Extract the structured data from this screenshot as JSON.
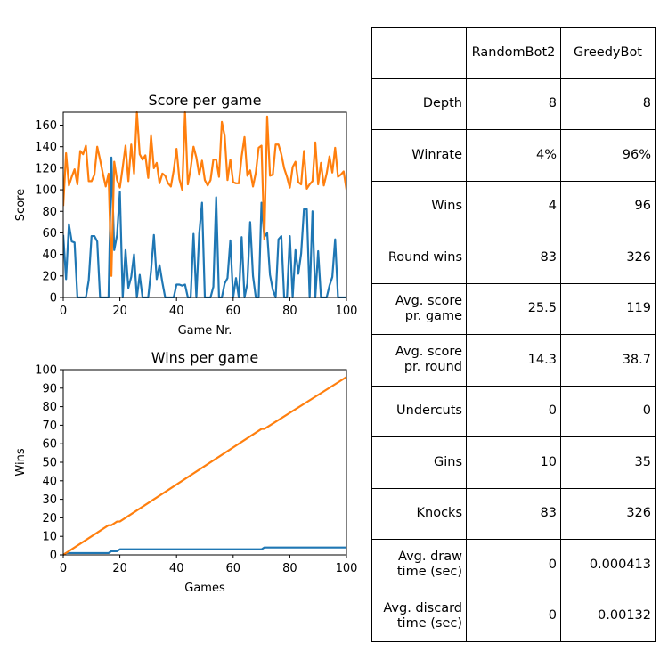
{
  "chart_data": [
    {
      "type": "line",
      "title": "Score per game",
      "xlabel": "Game Nr.",
      "ylabel": "Score",
      "xlim": [
        0,
        100
      ],
      "ylim": [
        0,
        172
      ],
      "xticks": [
        0,
        20,
        40,
        60,
        80,
        100
      ],
      "yticks": [
        0,
        20,
        40,
        60,
        80,
        100,
        120,
        140,
        160
      ],
      "grid": false,
      "colors": [
        "#1f77b4",
        "#ff7f0e"
      ],
      "x_start": 0,
      "series": [
        {
          "values": [
            58,
            17,
            68,
            52,
            51,
            0,
            0,
            0,
            0,
            16,
            57,
            57,
            52,
            0,
            0,
            0,
            0,
            130,
            44,
            58,
            98,
            0,
            44,
            9,
            19,
            40,
            0,
            21,
            0,
            0,
            0,
            25,
            58,
            17,
            30,
            14,
            0,
            0,
            0,
            0,
            12,
            12,
            11,
            12,
            0,
            0,
            59,
            0,
            59,
            88,
            0,
            0,
            0,
            10,
            93,
            0,
            0,
            13,
            18,
            53,
            0,
            18,
            0,
            56,
            0,
            13,
            70,
            20,
            0,
            0,
            88,
            56,
            60,
            21,
            7,
            0,
            54,
            57,
            0,
            0,
            57,
            0,
            44,
            22,
            41,
            82,
            82,
            0,
            80,
            0,
            43,
            0,
            0,
            0,
            11,
            19,
            54,
            0,
            0,
            0,
            0
          ]
        },
        {
          "values": [
            85,
            134,
            104,
            112,
            119,
            105,
            136,
            133,
            141,
            108,
            108,
            114,
            140,
            128,
            115,
            103,
            115,
            20,
            126,
            109,
            102,
            121,
            141,
            108,
            142,
            115,
            172,
            133,
            128,
            132,
            111,
            150,
            120,
            125,
            106,
            115,
            113,
            106,
            103,
            118,
            138,
            110,
            100,
            172,
            105,
            120,
            140,
            130,
            114,
            127,
            109,
            104,
            109,
            128,
            128,
            112,
            163,
            150,
            109,
            128,
            107,
            106,
            106,
            131,
            149,
            113,
            118,
            103,
            116,
            139,
            141,
            54,
            168,
            113,
            114,
            142,
            142,
            133,
            120,
            112,
            102,
            121,
            126,
            107,
            105,
            136,
            101,
            105,
            108,
            144,
            105,
            125,
            104,
            115,
            131,
            116,
            139,
            112,
            114,
            117,
            100
          ]
        }
      ]
    },
    {
      "type": "line",
      "title": "Wins per game",
      "xlabel": "Games",
      "ylabel": "Wins",
      "xlim": [
        0,
        100
      ],
      "ylim": [
        0,
        100
      ],
      "xticks": [
        0,
        20,
        40,
        60,
        80,
        100
      ],
      "yticks": [
        0,
        10,
        20,
        30,
        40,
        50,
        60,
        70,
        80,
        90,
        100
      ],
      "grid": false,
      "colors": [
        "#1f77b4",
        "#ff7f0e"
      ],
      "series": [
        {
          "points": [
            [
              0,
              0
            ],
            [
              1,
              1
            ],
            [
              16,
              1
            ],
            [
              17,
              2
            ],
            [
              19,
              2
            ],
            [
              20,
              3
            ],
            [
              70,
              3
            ],
            [
              71,
              4
            ],
            [
              100,
              4
            ]
          ]
        },
        {
          "points": [
            [
              0,
              0
            ],
            [
              16,
              16
            ],
            [
              17,
              16
            ],
            [
              18,
              17
            ],
            [
              19,
              18
            ],
            [
              20,
              18
            ],
            [
              70,
              68
            ],
            [
              71,
              68
            ],
            [
              100,
              96
            ]
          ]
        }
      ]
    },
    {
      "type": "table",
      "columns": [
        "",
        "RandomBot2",
        "GreedyBot"
      ],
      "rows": [
        [
          "Depth",
          "8",
          "8"
        ],
        [
          "Winrate",
          "4%",
          "96%"
        ],
        [
          "Wins",
          "4",
          "96"
        ],
        [
          "Round wins",
          "83",
          "326"
        ],
        [
          "Avg. score\npr. game",
          "25.5",
          "119"
        ],
        [
          "Avg. score\npr. round",
          "14.3",
          "38.7"
        ],
        [
          "Undercuts",
          "0",
          "0"
        ],
        [
          "Gins",
          "10",
          "35"
        ],
        [
          "Knocks",
          "83",
          "326"
        ],
        [
          "Avg. draw\ntime (sec)",
          "0",
          "0.000413"
        ],
        [
          "Avg. discard\ntime (sec)",
          "0",
          "0.00132"
        ]
      ]
    }
  ]
}
